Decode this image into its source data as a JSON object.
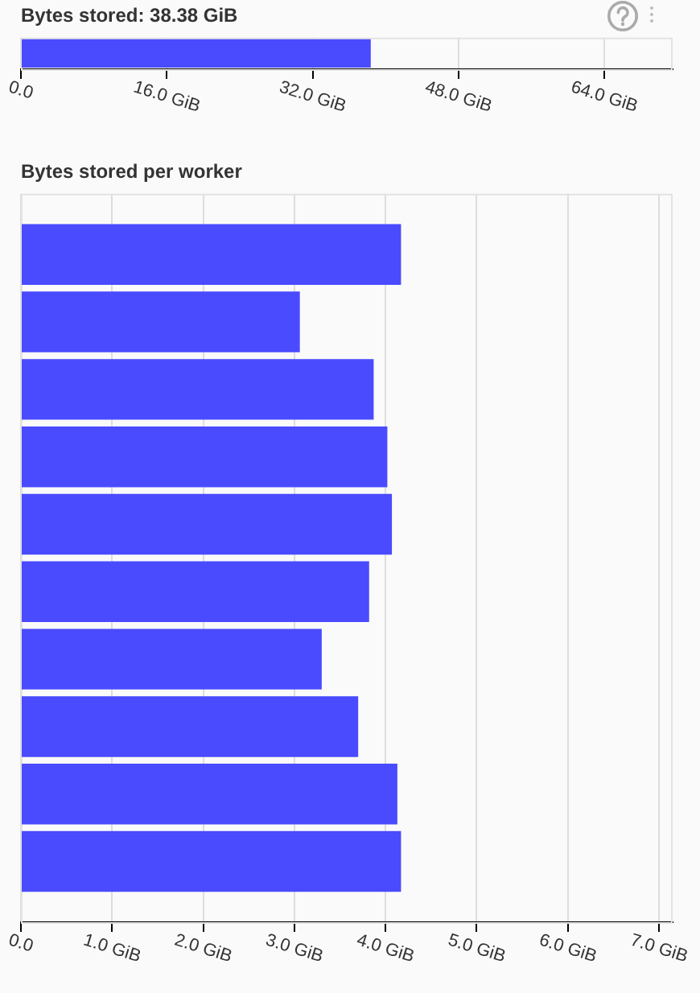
{
  "chart_data": [
    {
      "type": "bar",
      "title": "Bytes stored: 38.38 GiB",
      "orientation": "horizontal",
      "categories": [
        null
      ],
      "values": [
        38.38
      ],
      "color": "#4a4aff",
      "xlim": [
        0,
        71.5
      ],
      "xticks": [
        {
          "value": 0,
          "label": "0.0"
        },
        {
          "value": 16,
          "label": "16.0 GiB"
        },
        {
          "value": 32,
          "label": "32.0 GiB"
        },
        {
          "value": 48,
          "label": "48.0 GiB"
        },
        {
          "value": 64,
          "label": "64.0 GiB"
        }
      ],
      "grid": "x",
      "tick_labels": "x"
    },
    {
      "type": "bar",
      "title": "Bytes stored per worker",
      "orientation": "horizontal",
      "categories": [
        null,
        null,
        null,
        null,
        null,
        null,
        null,
        null,
        null,
        null
      ],
      "values": [
        4.17,
        3.06,
        3.87,
        4.02,
        4.07,
        3.82,
        3.3,
        3.7,
        4.13,
        4.17
      ],
      "color": "#4a4aff",
      "xlim": [
        0,
        7.15
      ],
      "xticks": [
        {
          "value": 0,
          "label": "0.0"
        },
        {
          "value": 1,
          "label": "1.0 GiB"
        },
        {
          "value": 2,
          "label": "2.0 GiB"
        },
        {
          "value": 3,
          "label": "3.0 GiB"
        },
        {
          "value": 4,
          "label": "4.0 GiB"
        },
        {
          "value": 5,
          "label": "5.0 GiB"
        },
        {
          "value": 6,
          "label": "6.0 GiB"
        },
        {
          "value": 7,
          "label": "7.0 GiB"
        }
      ],
      "grid": "x",
      "tick_labels": "x"
    }
  ]
}
